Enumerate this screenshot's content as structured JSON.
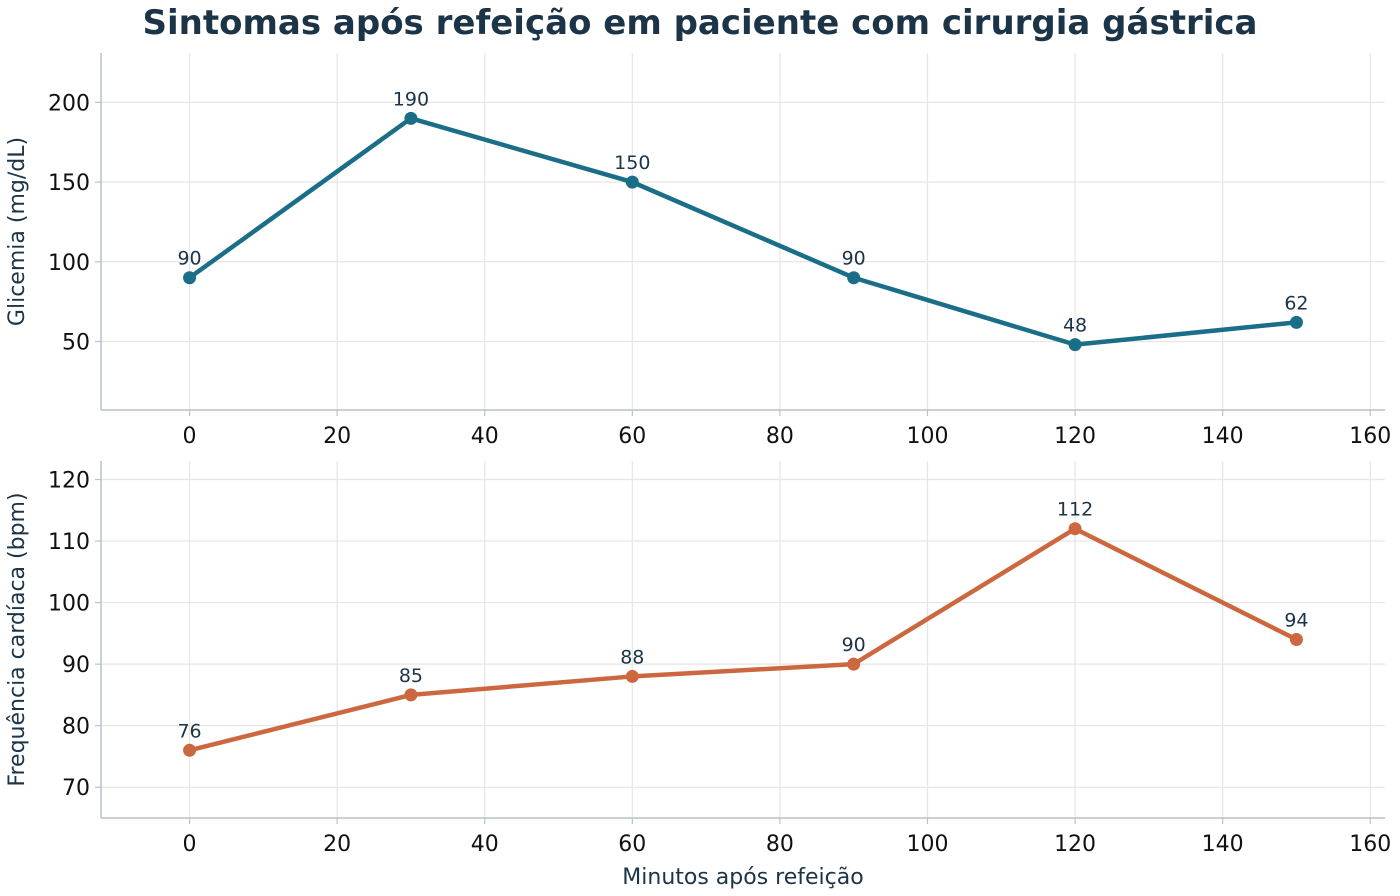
{
  "chart_data": {
    "type": "line",
    "title": "Sintomas após refeição em paciente com cirurgia gástrica",
    "xlabel": "Minutos após refeição",
    "x": [
      0,
      30,
      60,
      90,
      120,
      150
    ],
    "xlim": [
      -12,
      162
    ],
    "xticks": [
      0,
      20,
      40,
      60,
      80,
      100,
      120,
      140,
      160
    ],
    "grid": true,
    "panels": [
      {
        "ylabel": "Glicemia (mg/dL)",
        "ylim": [
          7,
          231
        ],
        "yticks": [
          50,
          100,
          150,
          200
        ],
        "color": "#1b6e87",
        "series": [
          {
            "values": [
              90,
              190,
              150,
              90,
              48,
              62
            ]
          }
        ]
      },
      {
        "ylabel": "Frequência cardíaca (bpm)",
        "ylim": [
          65,
          123
        ],
        "yticks": [
          70,
          80,
          90,
          100,
          110,
          120
        ],
        "color": "#cc6840",
        "series": [
          {
            "values": [
              76,
              85,
              88,
              90,
              112,
              94
            ]
          }
        ]
      }
    ]
  }
}
